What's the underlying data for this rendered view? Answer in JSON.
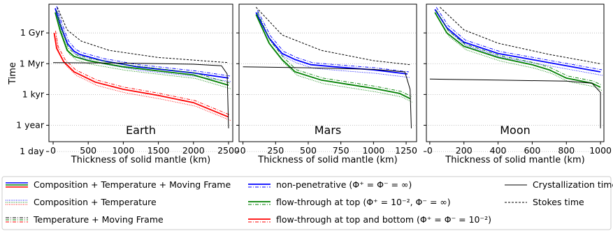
{
  "chart_data": {
    "type": "line",
    "shared": {
      "ylabel": "Time",
      "xlabel": "Thickness of solid mantle (km)",
      "y_scale": "log",
      "ylim": [
        "~1 hour",
        "~100 Gyr"
      ],
      "yticks": [
        "1 day",
        "1 year",
        "1 kyr",
        "1 Myr",
        "1 Gyr"
      ],
      "grid": "horizontal dotted at y ticks"
    },
    "panels": [
      {
        "title": "Earth",
        "xlim": [
          -60,
          2560
        ],
        "xticks": [
          "0",
          "500",
          "1000",
          "1500",
          "2000",
          "2500"
        ],
        "series": [
          {
            "regime": "non-penetrative",
            "color": "#0000ff",
            "points": [
              [
                30,
                11.4
              ],
              [
                100,
                9.8
              ],
              [
                200,
                8.0
              ],
              [
                300,
                7.2
              ],
              [
                380,
                6.9
              ],
              [
                700,
                6.3
              ],
              [
                1200,
                5.7
              ],
              [
                2000,
                5.1
              ],
              [
                2500,
                4.6
              ]
            ]
          },
          {
            "regime": "flow-through at top",
            "color": "#008000",
            "points": [
              [
                30,
                11.0
              ],
              [
                100,
                9.2
              ],
              [
                200,
                7.3
              ],
              [
                300,
                6.7
              ],
              [
                500,
                6.3
              ],
              [
                1000,
                5.7
              ],
              [
                1500,
                5.3
              ],
              [
                2000,
                4.9
              ],
              [
                2500,
                3.9
              ]
            ]
          },
          {
            "regime": "flow-through at top and bottom",
            "color": "#ff0000",
            "points": [
              [
                15,
                9.0
              ],
              [
                50,
                7.5
              ],
              [
                150,
                6.2
              ],
              [
                300,
                5.2
              ],
              [
                600,
                4.2
              ],
              [
                1000,
                3.5
              ],
              [
                1500,
                2.9
              ],
              [
                2000,
                2.2
              ],
              [
                2500,
                0.8
              ]
            ]
          },
          {
            "kind": "Stokes time",
            "color": "#000000",
            "points": [
              [
                60,
                11.5
              ],
              [
                200,
                9.3
              ],
              [
                400,
                8.2
              ],
              [
                800,
                7.3
              ],
              [
                1500,
                6.6
              ],
              [
                2500,
                6.1
              ]
            ]
          },
          {
            "kind": "Crystallization time",
            "color": "#000000",
            "points": [
              [
                0,
                6.1
              ],
              [
                1000,
                6.06
              ],
              [
                2000,
                5.95
              ],
              [
                2400,
                5.8
              ],
              [
                2480,
                5.0
              ],
              [
                2500,
                -0.3
              ]
            ]
          }
        ]
      },
      {
        "title": "Mars",
        "xlim": [
          -30,
          1330
        ],
        "xticks": [
          "0",
          "250",
          "500",
          "750",
          "1000",
          "1250"
        ],
        "series": [
          {
            "regime": "non-penetrative",
            "color": "#0000ff",
            "points": [
              [
                100,
                11.0
              ],
              [
                200,
                8.5
              ],
              [
                300,
                7.0
              ],
              [
                400,
                6.4
              ],
              [
                520,
                5.9
              ],
              [
                700,
                5.7
              ],
              [
                1000,
                5.4
              ],
              [
                1260,
                5.0
              ]
            ]
          },
          {
            "regime": "flow-through at top",
            "color": "#008000",
            "points": [
              [
                100,
                10.8
              ],
              [
                200,
                8.0
              ],
              [
                300,
                6.4
              ],
              [
                400,
                5.2
              ],
              [
                600,
                4.4
              ],
              [
                800,
                4.0
              ],
              [
                1000,
                3.6
              ],
              [
                1200,
                3.1
              ],
              [
                1280,
                2.6
              ]
            ]
          },
          {
            "kind": "Stokes time",
            "color": "#000000",
            "points": [
              [
                100,
                11.5
              ],
              [
                300,
                8.8
              ],
              [
                600,
                7.3
              ],
              [
                1000,
                6.3
              ],
              [
                1280,
                5.9
              ]
            ]
          },
          {
            "kind": "Crystallization time",
            "color": "#000000",
            "points": [
              [
                0,
                5.7
              ],
              [
                500,
                5.6
              ],
              [
                1000,
                5.45
              ],
              [
                1240,
                5.2
              ],
              [
                1280,
                3.5
              ],
              [
                1290,
                -0.3
              ]
            ]
          }
        ]
      },
      {
        "title": "Moon",
        "xlim": [
          -20,
          1020
        ],
        "xticks": [
          "0",
          "200",
          "400",
          "600",
          "800",
          "1000"
        ],
        "series": [
          {
            "regime": "non-penetrative",
            "color": "#0000ff",
            "points": [
              [
                30,
                11.3
              ],
              [
                100,
                9.5
              ],
              [
                200,
                8.1
              ],
              [
                400,
                7.0
              ],
              [
                600,
                6.4
              ],
              [
                800,
                5.8
              ],
              [
                1000,
                5.2
              ]
            ]
          },
          {
            "regime": "flow-through at top",
            "color": "#008000",
            "points": [
              [
                30,
                11.0
              ],
              [
                100,
                9.0
              ],
              [
                200,
                7.7
              ],
              [
                400,
                6.6
              ],
              [
                600,
                5.9
              ],
              [
                700,
                5.4
              ],
              [
                800,
                4.6
              ],
              [
                950,
                4.1
              ],
              [
                1000,
                3.7
              ]
            ]
          },
          {
            "kind": "Stokes time",
            "color": "#000000",
            "points": [
              [
                60,
                11.5
              ],
              [
                200,
                9.3
              ],
              [
                400,
                8.0
              ],
              [
                700,
                6.9
              ],
              [
                1000,
                6.0
              ]
            ]
          },
          {
            "kind": "Crystallization time",
            "color": "#000000",
            "points": [
              [
                0,
                4.5
              ],
              [
                400,
                4.4
              ],
              [
                800,
                4.3
              ],
              [
                950,
                4.1
              ],
              [
                1000,
                3.2
              ],
              [
                1000,
                -0.3
              ]
            ]
          }
        ]
      }
    ],
    "legend": {
      "placement": "bottom",
      "columns": [
        [
          {
            "label": "Composition + Temperature + Moving Frame",
            "style": "solid"
          },
          {
            "label": "Composition + Temperature",
            "style": "dotted"
          },
          {
            "label": "Temperature + Moving Frame",
            "style": "dashdot"
          }
        ],
        [
          {
            "label": "non-penetrative (Φ⁺ = Φ⁻ = ∞)",
            "color": "#0000ff"
          },
          {
            "label": "flow-through at top (Φ⁺ = 10⁻², Φ⁻ = ∞)",
            "color": "#008000"
          },
          {
            "label": "flow-through at top and bottom (Φ⁺ = Φ⁻ = 10⁻²)",
            "color": "#ff0000"
          }
        ],
        [
          {
            "label": "Crystallization time",
            "style": "solid",
            "color": "#000000"
          },
          {
            "label": "Stokes time",
            "style": "dashed",
            "color": "#000000"
          }
        ]
      ]
    }
  }
}
